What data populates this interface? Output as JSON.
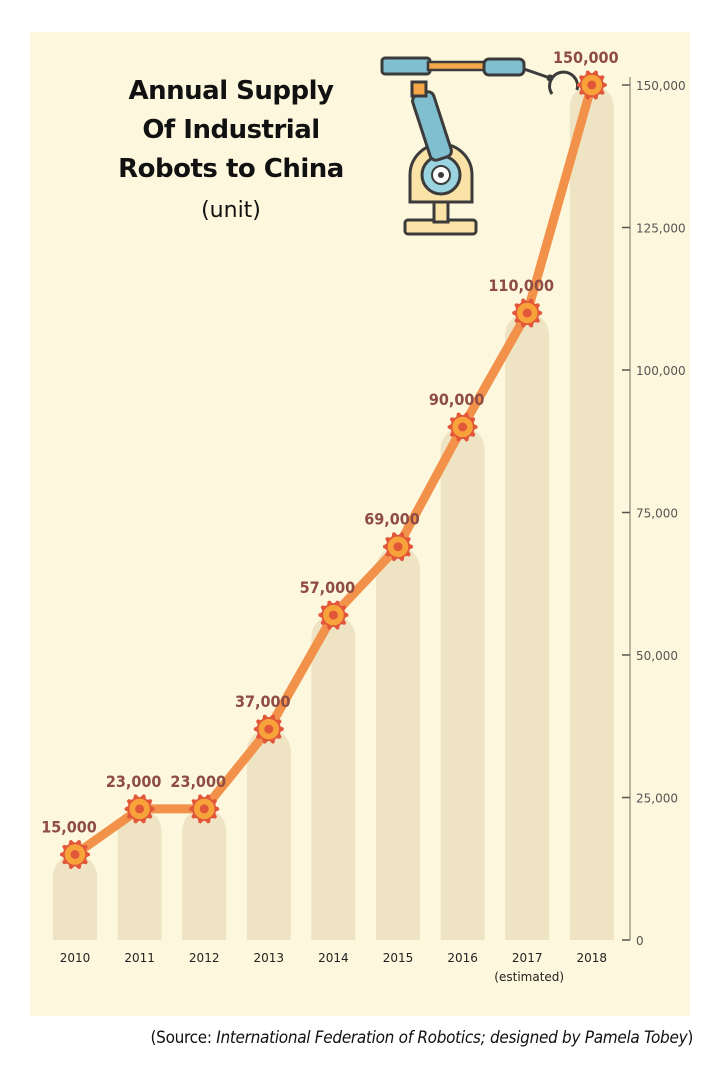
{
  "chart_data": {
    "type": "line",
    "title_lines": [
      "Annual Supply",
      "Of Industrial",
      "Robots to China"
    ],
    "subtitle": "(unit)",
    "categories": [
      "2010",
      "2011",
      "2012",
      "2013",
      "2014",
      "2015",
      "2016",
      "2017",
      "2018"
    ],
    "category_note": {
      "category": "2017",
      "text": "(estimated)"
    },
    "values": [
      15000,
      23000,
      23000,
      37000,
      57000,
      69000,
      90000,
      110000,
      150000
    ],
    "data_labels": [
      "15,000",
      "23,000",
      "23,000",
      "37,000",
      "57,000",
      "69,000",
      "90,000",
      "110,000",
      "150,000"
    ],
    "y_ticks": [
      0,
      25000,
      50000,
      75000,
      100000,
      125000,
      150000
    ],
    "y_tick_labels": [
      "0",
      "25,000",
      "50,000",
      "75,000",
      "100,000",
      "125,000",
      "150,000"
    ],
    "ylim": [
      0,
      150000
    ],
    "y_axis_side": "right",
    "grid": false,
    "colors": {
      "background": "#fdf8dd",
      "bars": "#eee3c2",
      "line": "#f2914a",
      "marker": "#f7a33a",
      "marker_gear": "#e2563a",
      "data_label": "#8e4c44",
      "axis": "#a69c8c"
    }
  },
  "decoration": {
    "icon": "robot-arm-icon"
  },
  "source": {
    "prefix": "(Source: ",
    "org": "International Federation of Robotics",
    "designer": "; designed by Pamela Tobey",
    "suffix": ")"
  }
}
